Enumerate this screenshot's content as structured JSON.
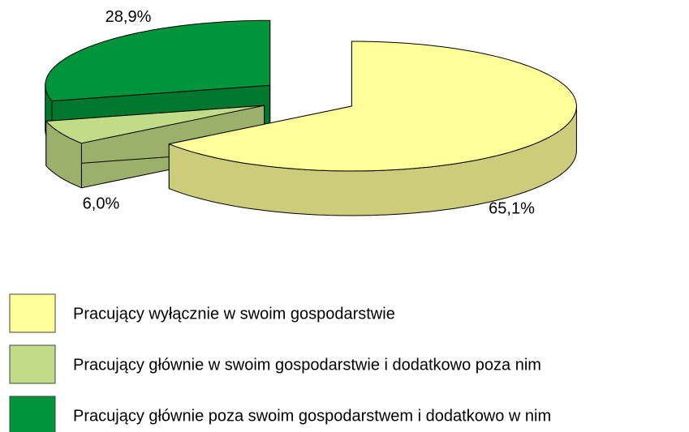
{
  "chart_data": {
    "type": "pie3d",
    "categories": [
      "Pracujący wyłącznie w swoim gospodarstwie",
      "Pracujący głównie w swoim gospodarstwie i dodatkowo poza nim",
      "Pracujący głównie poza swoim gospodarstwem i dodatkowo w nim"
    ],
    "values": [
      65.1,
      6.0,
      28.9
    ],
    "value_labels": [
      "65,1%",
      "6,0%",
      "28,9%"
    ],
    "colors": [
      "#ffff99",
      "#c0dc86",
      "#00953a"
    ]
  }
}
